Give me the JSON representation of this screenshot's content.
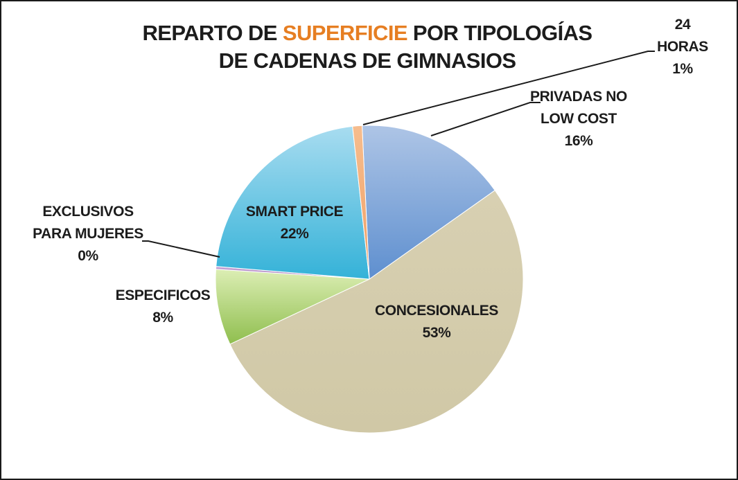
{
  "chart_data": {
    "type": "pie",
    "title": {
      "line1_before": "REPARTO DE ",
      "line1_highlight": "SUPERFICIE",
      "line1_after": " POR TIPOLOGÍAS",
      "line2": "DE CADENAS DE GIMNASIOS",
      "highlight_color": "#e67e22"
    },
    "slices": [
      {
        "key": "privadas",
        "label": [
          "PRIVADAS NO",
          "LOW COST"
        ],
        "pct_label": "16%",
        "value": 16,
        "color_light": "#aec5e6",
        "color_dark": "#5e8fcf"
      },
      {
        "key": "concesionales",
        "label": [
          "CONCESIONALES"
        ],
        "pct_label": "53%",
        "value": 53,
        "color_light": "#d8d0b2",
        "color_dark": "#d0c8a6"
      },
      {
        "key": "especificos",
        "label": [
          "ESPECIFICOS"
        ],
        "pct_label": "8%",
        "value": 8,
        "color_light": "#dceeb4",
        "color_dark": "#8fbe4e"
      },
      {
        "key": "mujeres",
        "label": [
          "EXCLUSIVOS",
          "PARA MUJERES"
        ],
        "pct_label": "0%",
        "value": 0.3,
        "color_light": "#c9a8d8",
        "color_dark": "#a07ab8"
      },
      {
        "key": "smart",
        "label": [
          "SMART PRICE"
        ],
        "pct_label": "22%",
        "value": 22,
        "color_light": "#a8dcf0",
        "color_dark": "#34b2d8"
      },
      {
        "key": "horas24",
        "label": [
          "24",
          "HORAS"
        ],
        "pct_label": "1%",
        "value": 1,
        "color_light": "#f6bd8e",
        "color_dark": "#f0a066"
      }
    ]
  }
}
